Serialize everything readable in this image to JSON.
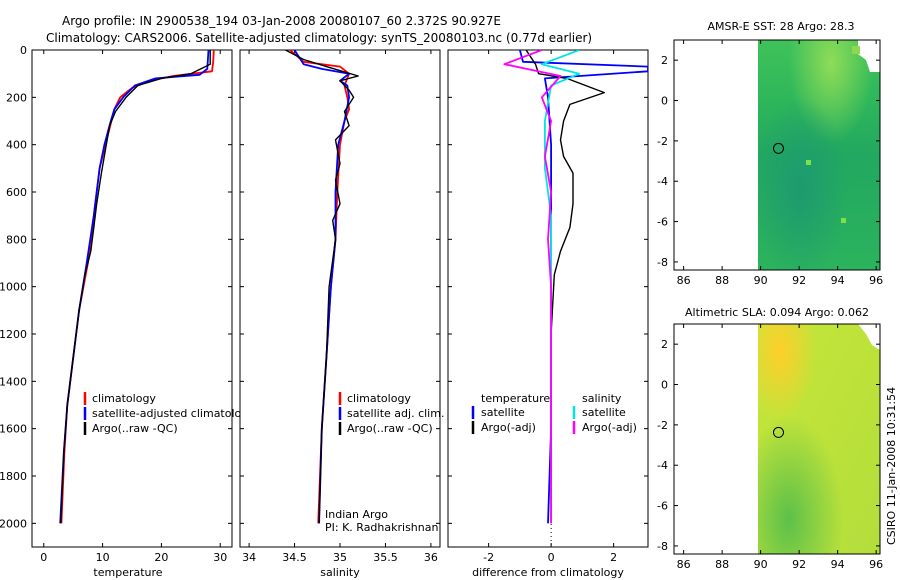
{
  "title_line1": "Argo profile: IN 2900538_194 03-Jan-2008 20080107_60 2.372S 90.927E",
  "title_line2": "Climatology: CARS2006. Satellite-adjusted climatology: synTS_20080103.nc (0.77d earlier)",
  "colors": {
    "climatology": "#ff0000",
    "satellite": "#0000ff",
    "argo": "#000000",
    "satellite_diff_temp": "#0000ff",
    "satellite_diff_sal": "#00e5e5",
    "argo_diff_sal": "#ff00ff"
  },
  "chart_data": [
    {
      "type": "line",
      "name": "temperature-profile",
      "xlabel": "temperature",
      "xlim": [
        -2,
        32
      ],
      "ylim": [
        2100,
        0
      ],
      "xticks": [
        "0",
        "10",
        "20",
        "30"
      ],
      "yticks": [
        "0",
        "200",
        "400",
        "600",
        "800",
        "1000",
        "1200",
        "1400",
        "1600",
        "1800",
        "2000"
      ],
      "legend": [
        "climatology",
        "satellite-adjusted climatology",
        "Argo(..raw -QC)"
      ],
      "series": [
        {
          "name": "climatology",
          "color": "#ff0000",
          "points": [
            [
              28.9,
              0
            ],
            [
              28.8,
              50
            ],
            [
              28.6,
              90
            ],
            [
              22,
              110
            ],
            [
              18,
              130
            ],
            [
              15,
              160
            ],
            [
              13,
              200
            ],
            [
              12,
              250
            ],
            [
              11.5,
              300
            ],
            [
              10.5,
              400
            ],
            [
              9.5,
              500
            ],
            [
              8.5,
              700
            ],
            [
              7.5,
              900
            ],
            [
              6,
              1100
            ],
            [
              5,
              1300
            ],
            [
              4,
              1500
            ],
            [
              3.5,
              1700
            ],
            [
              3,
              2000
            ]
          ]
        },
        {
          "name": "satellite",
          "color": "#0000ff",
          "points": [
            [
              28,
              0
            ],
            [
              27.8,
              80
            ],
            [
              26.5,
              105
            ],
            [
              19,
              120
            ],
            [
              15.5,
              150
            ],
            [
              13.5,
              200
            ],
            [
              12,
              250
            ],
            [
              11.4,
              300
            ],
            [
              10.3,
              400
            ],
            [
              9.5,
              500
            ],
            [
              8.5,
              700
            ],
            [
              7.3,
              900
            ],
            [
              6,
              1100
            ],
            [
              5,
              1300
            ],
            [
              4,
              1500
            ],
            [
              3.4,
              1700
            ],
            [
              2.8,
              2000
            ]
          ]
        },
        {
          "name": "argo",
          "color": "#000000",
          "points": [
            [
              28.3,
              0
            ],
            [
              28.3,
              60
            ],
            [
              25,
              100
            ],
            [
              20,
              120
            ],
            [
              16,
              150
            ],
            [
              14,
              200
            ],
            [
              12.2,
              260
            ],
            [
              11.2,
              320
            ],
            [
              10.5,
              420
            ],
            [
              9.8,
              520
            ],
            [
              9,
              650
            ],
            [
              8.5,
              750
            ],
            [
              8,
              850
            ],
            [
              7,
              950
            ],
            [
              6,
              1100
            ],
            [
              5,
              1300
            ],
            [
              4,
              1500
            ],
            [
              3.4,
              1700
            ],
            [
              2.9,
              2000
            ]
          ]
        }
      ]
    },
    {
      "type": "line",
      "name": "salinity-profile",
      "xlabel": "salinity",
      "xlim": [
        33.9,
        36.1
      ],
      "ylim": [
        2100,
        0
      ],
      "xticks": [
        "34",
        "34.5",
        "35",
        "35.5",
        "36"
      ],
      "legend": [
        "climatology",
        "satellite adj. clim.",
        "Argo(..raw -QC)"
      ],
      "annotation": [
        "Indian Argo",
        "PI: K. Radhakrishnan"
      ],
      "series": [
        {
          "name": "climatology",
          "color": "#ff0000",
          "points": [
            [
              34.45,
              0
            ],
            [
              34.6,
              50
            ],
            [
              35.0,
              70
            ],
            [
              35.1,
              100
            ],
            [
              35.05,
              150
            ],
            [
              35.08,
              200
            ],
            [
              35.1,
              250
            ],
            [
              35.05,
              300
            ],
            [
              35.0,
              400
            ],
            [
              34.97,
              600
            ],
            [
              34.95,
              800
            ],
            [
              34.9,
              1000
            ],
            [
              34.85,
              1300
            ],
            [
              34.8,
              1600
            ],
            [
              34.76,
              2000
            ]
          ]
        },
        {
          "name": "satellite",
          "color": "#0000ff",
          "points": [
            [
              34.5,
              0
            ],
            [
              34.55,
              30
            ],
            [
              34.6,
              60
            ],
            [
              34.8,
              80
            ],
            [
              35.1,
              100
            ],
            [
              35.0,
              130
            ],
            [
              35.08,
              150
            ],
            [
              35.1,
              200
            ],
            [
              35.05,
              300
            ],
            [
              34.98,
              400
            ],
            [
              34.95,
              600
            ],
            [
              34.95,
              800
            ],
            [
              34.9,
              1000
            ],
            [
              34.85,
              1300
            ],
            [
              34.8,
              1600
            ],
            [
              34.77,
              2000
            ]
          ]
        },
        {
          "name": "argo",
          "color": "#000000",
          "points": [
            [
              34.4,
              0
            ],
            [
              34.6,
              40
            ],
            [
              34.85,
              70
            ],
            [
              35.2,
              110
            ],
            [
              35.0,
              130
            ],
            [
              35.1,
              170
            ],
            [
              35.15,
              200
            ],
            [
              35.05,
              260
            ],
            [
              35.1,
              320
            ],
            [
              34.95,
              380
            ],
            [
              34.97,
              420
            ],
            [
              35.0,
              480
            ],
            [
              34.95,
              550
            ],
            [
              35.0,
              650
            ],
            [
              34.92,
              720
            ],
            [
              34.95,
              800
            ],
            [
              34.88,
              1000
            ],
            [
              34.85,
              1300
            ],
            [
              34.8,
              1600
            ],
            [
              34.77,
              2000
            ]
          ]
        }
      ]
    },
    {
      "type": "line",
      "name": "difference-profile",
      "xlabel": "difference from climatology",
      "xlim": [
        -3.3,
        3.1
      ],
      "ylim": [
        2100,
        0
      ],
      "xticks": [
        "-2",
        "0",
        "2"
      ],
      "legend_left": {
        "title": "temperature",
        "items": [
          "satellite",
          "Argo(-adj)"
        ]
      },
      "legend_right": {
        "title": "salinity",
        "items": [
          "satellite",
          "Argo(-adj)"
        ]
      },
      "series": [
        {
          "name": "temp-satellite",
          "color": "#0000ff",
          "points": [
            [
              -1.0,
              0
            ],
            [
              -0.9,
              50
            ],
            [
              3.1,
              70
            ],
            [
              3.1,
              90
            ],
            [
              -0.2,
              120
            ],
            [
              -0.1,
              200
            ],
            [
              0.0,
              400
            ],
            [
              0.0,
              800
            ],
            [
              0.0,
              1200
            ],
            [
              0.0,
              1600
            ],
            [
              -0.1,
              2000
            ]
          ]
        },
        {
          "name": "temp-argo",
          "color": "#000000",
          "points": [
            [
              -0.8,
              0
            ],
            [
              -0.5,
              60
            ],
            [
              -0.4,
              100
            ],
            [
              0.5,
              120
            ],
            [
              1.7,
              180
            ],
            [
              0.6,
              230
            ],
            [
              0.4,
              300
            ],
            [
              0.3,
              380
            ],
            [
              0.4,
              450
            ],
            [
              0.7,
              520
            ],
            [
              0.7,
              650
            ],
            [
              0.6,
              750
            ],
            [
              0.3,
              850
            ],
            [
              0.1,
              950
            ],
            [
              0.0,
              1200
            ],
            [
              0.0,
              1600
            ],
            [
              0.0,
              2000
            ]
          ]
        },
        {
          "name": "sal-satellite",
          "color": "#00e5e5",
          "points": [
            [
              0.9,
              0
            ],
            [
              -0.3,
              60
            ],
            [
              0.9,
              100
            ],
            [
              0.0,
              150
            ],
            [
              -0.2,
              300
            ],
            [
              -0.2,
              500
            ],
            [
              0.0,
              700
            ],
            [
              0.0,
              1000
            ],
            [
              0.0,
              1400
            ],
            [
              0.0,
              2000
            ]
          ]
        },
        {
          "name": "sal-argo",
          "color": "#ff00ff",
          "points": [
            [
              -0.3,
              0
            ],
            [
              -1.5,
              60
            ],
            [
              0.3,
              110
            ],
            [
              -0.3,
              200
            ],
            [
              0.0,
              300
            ],
            [
              -0.2,
              450
            ],
            [
              0.0,
              600
            ],
            [
              -0.1,
              800
            ],
            [
              0.0,
              1000
            ],
            [
              0.0,
              1400
            ],
            [
              0.0,
              2000
            ]
          ]
        }
      ]
    },
    {
      "type": "heatmap",
      "name": "sst-map",
      "title": "AMSR-E SST: 28 Argo: 28.3",
      "xlim": [
        85.5,
        96.2
      ],
      "ylim": [
        -8.4,
        3.0
      ],
      "xticks": [
        "86",
        "88",
        "90",
        "92",
        "94",
        "96"
      ],
      "yticks": [
        "2",
        "0",
        "-2",
        "-4",
        "-6",
        "-8"
      ],
      "data_xmin": 90,
      "marker": [
        90.927,
        -2.372
      ]
    },
    {
      "type": "heatmap",
      "name": "sla-map",
      "title": "Altimetric SLA: 0.094 Argo: 0.062",
      "xlim": [
        85.5,
        96.2
      ],
      "ylim": [
        -8.4,
        3.0
      ],
      "xticks": [
        "86",
        "88",
        "90",
        "92",
        "94",
        "96"
      ],
      "yticks": [
        "2",
        "0",
        "-2",
        "-4",
        "-6",
        "-8"
      ],
      "data_xmin": 90,
      "marker": [
        90.927,
        -2.372
      ]
    }
  ],
  "footer_stamp": "CSIRO 11-Jan-2008 10:31:54"
}
